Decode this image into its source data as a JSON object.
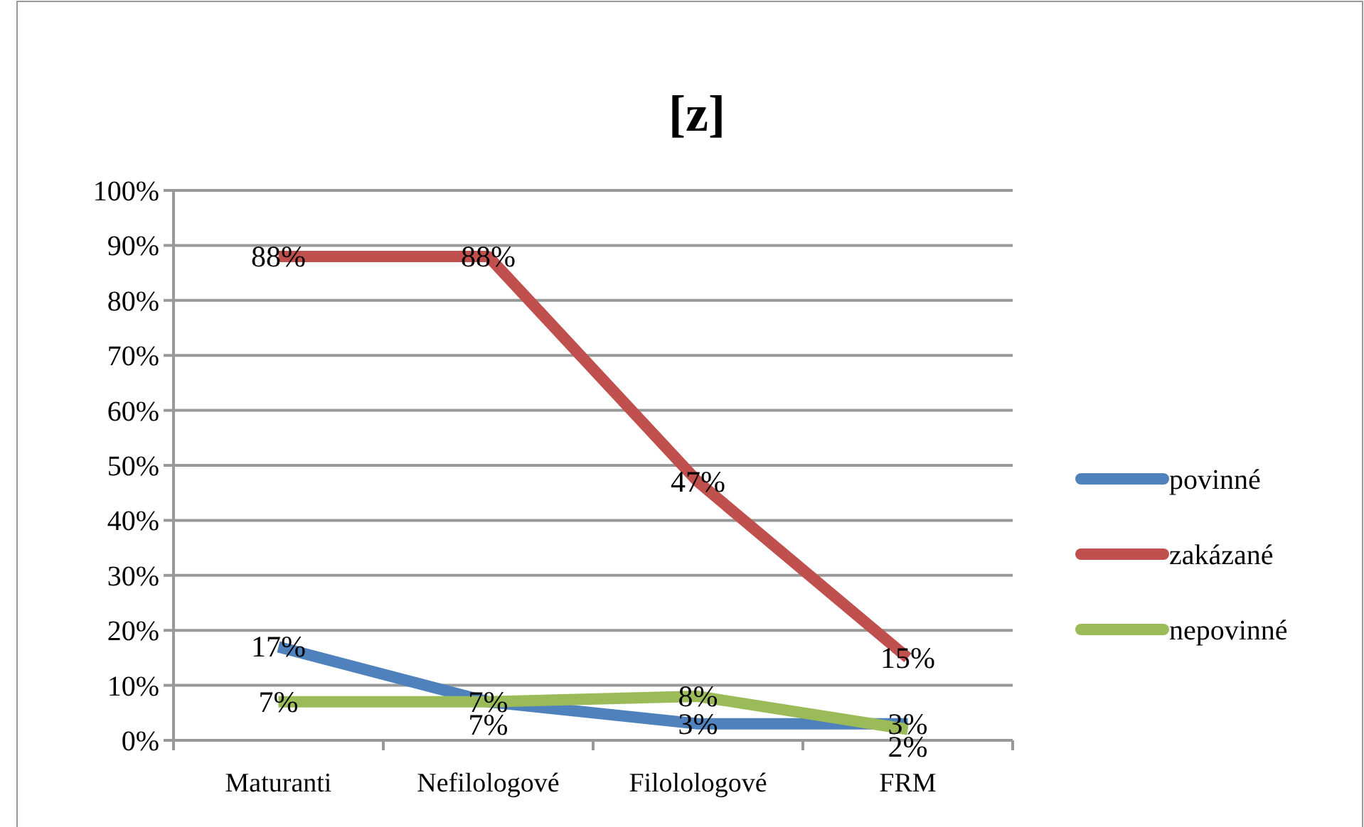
{
  "chart_data": {
    "type": "line",
    "title": "[z]",
    "categories": [
      "Maturanti",
      "Nefilologové",
      "Filolologové",
      "FRM"
    ],
    "series": [
      {
        "name": "povinné",
        "color": "#4f81bd",
        "values": [
          17,
          7,
          3,
          3
        ],
        "value_labels": [
          "17%",
          "7%",
          "3%",
          "3%"
        ]
      },
      {
        "name": "zakázané",
        "color": "#c0504d",
        "values": [
          88,
          88,
          47,
          15
        ],
        "value_labels": [
          "88%",
          "88%",
          "47%",
          "15%"
        ]
      },
      {
        "name": "nepovinné",
        "color": "#9bbb59",
        "values": [
          7,
          7,
          8,
          2
        ],
        "value_labels": [
          "7%",
          "7%",
          "8%",
          "2%"
        ]
      }
    ],
    "ylim": [
      0,
      100
    ],
    "yticks": [
      {
        "value": 0,
        "label": "0%"
      },
      {
        "value": 10,
        "label": "10%"
      },
      {
        "value": 20,
        "label": "20%"
      },
      {
        "value": 30,
        "label": "30%"
      },
      {
        "value": 40,
        "label": "40%"
      },
      {
        "value": 50,
        "label": "50%"
      },
      {
        "value": 60,
        "label": "60%"
      },
      {
        "value": 70,
        "label": "70%"
      },
      {
        "value": 80,
        "label": "80%"
      },
      {
        "value": 90,
        "label": "90%"
      },
      {
        "value": 100,
        "label": "100%"
      }
    ],
    "grid": "y",
    "legend": "right",
    "marker": "none",
    "line_style": "solid"
  }
}
